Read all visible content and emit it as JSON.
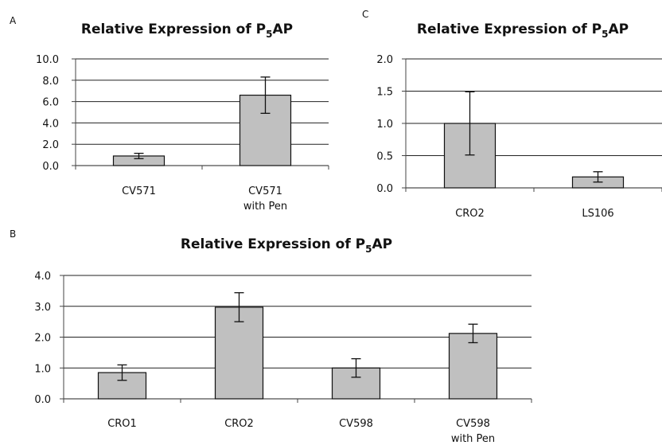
{
  "chart_data": [
    {
      "panel": "A",
      "type": "bar",
      "title_main": "Relative Expression of P",
      "title_sub": "5",
      "title_end": "AP",
      "categories": [
        [
          "CV571"
        ],
        [
          "CV571",
          "with Pen"
        ]
      ],
      "values": [
        0.9,
        6.6
      ],
      "errors": [
        0.25,
        1.7
      ],
      "ylim": [
        0,
        10
      ],
      "yticks": [
        "0.0",
        "2.0",
        "4.0",
        "6.0",
        "8.0",
        "10.0"
      ],
      "grid": true
    },
    {
      "panel": "C",
      "type": "bar",
      "title_main": "Relative Expression of P",
      "title_sub": "5",
      "title_end": "AP",
      "categories": [
        [
          "CRO2"
        ],
        [
          "LS106"
        ]
      ],
      "values": [
        1.0,
        0.17
      ],
      "errors": [
        0.49,
        0.08
      ],
      "ylim": [
        0,
        2
      ],
      "yticks": [
        "0.0",
        "0.5",
        "1.0",
        "1.5",
        "2.0"
      ],
      "grid": true
    },
    {
      "panel": "B",
      "type": "bar",
      "title_main": "Relative Expression of P",
      "title_sub": "5",
      "title_end": "AP",
      "categories": [
        [
          "CRO1"
        ],
        [
          "CRO2"
        ],
        [
          "CV598"
        ],
        [
          "CV598",
          "with Pen"
        ]
      ],
      "values": [
        0.85,
        2.97,
        1.0,
        2.12
      ],
      "errors": [
        0.25,
        0.47,
        0.3,
        0.3
      ],
      "ylim": [
        0,
        4
      ],
      "yticks": [
        "0.0",
        "1.0",
        "2.0",
        "3.0",
        "4.0"
      ],
      "grid": true
    }
  ]
}
